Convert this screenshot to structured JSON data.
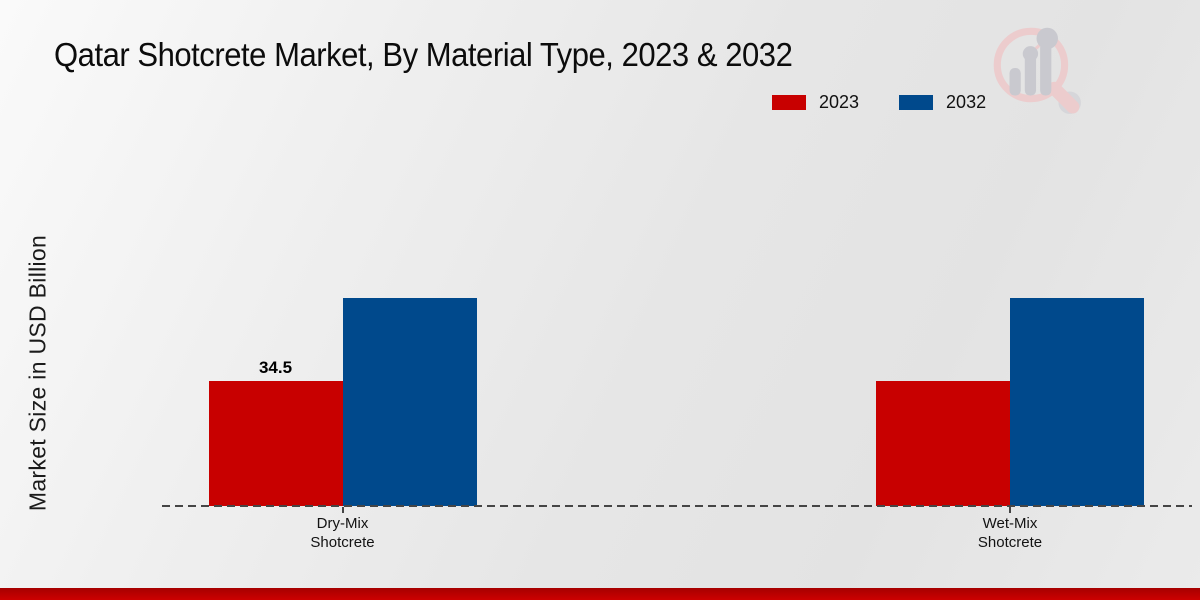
{
  "chart_data": {
    "type": "bar",
    "title": "Qatar Shotcrete Market, By Material Type, 2023 & 2032",
    "xlabel": "",
    "ylabel": "Market Size in USD Billion",
    "categories": [
      "Dry-Mix Shotcrete",
      "Wet-Mix Shotcrete"
    ],
    "category_label_lines": [
      [
        "Dry-Mix",
        "Shotcrete"
      ],
      [
        "Wet-Mix",
        "Shotcrete"
      ]
    ],
    "series": [
      {
        "name": "2023",
        "color": "#c80000",
        "values": [
          34.5,
          34.5
        ],
        "data_labels": [
          "34.5",
          ""
        ]
      },
      {
        "name": "2032",
        "color": "#00498c",
        "values": [
          57.5,
          57.5
        ],
        "data_labels": [
          "",
          ""
        ]
      }
    ],
    "ylim": [
      0,
      60
    ],
    "grid": false,
    "legend_position": "top-right",
    "baseline_style": "dashed",
    "y_axis_ticks_visible": false
  },
  "colors": {
    "accent_red": "#c80000",
    "accent_blue": "#00498c",
    "bottom_strip": "#c00000",
    "baseline": "#454545",
    "background_light": "#fafafa",
    "background_dark": "#e3e3e3",
    "logo_pink": "#eccccd",
    "logo_gray": "#c9c9cf"
  }
}
